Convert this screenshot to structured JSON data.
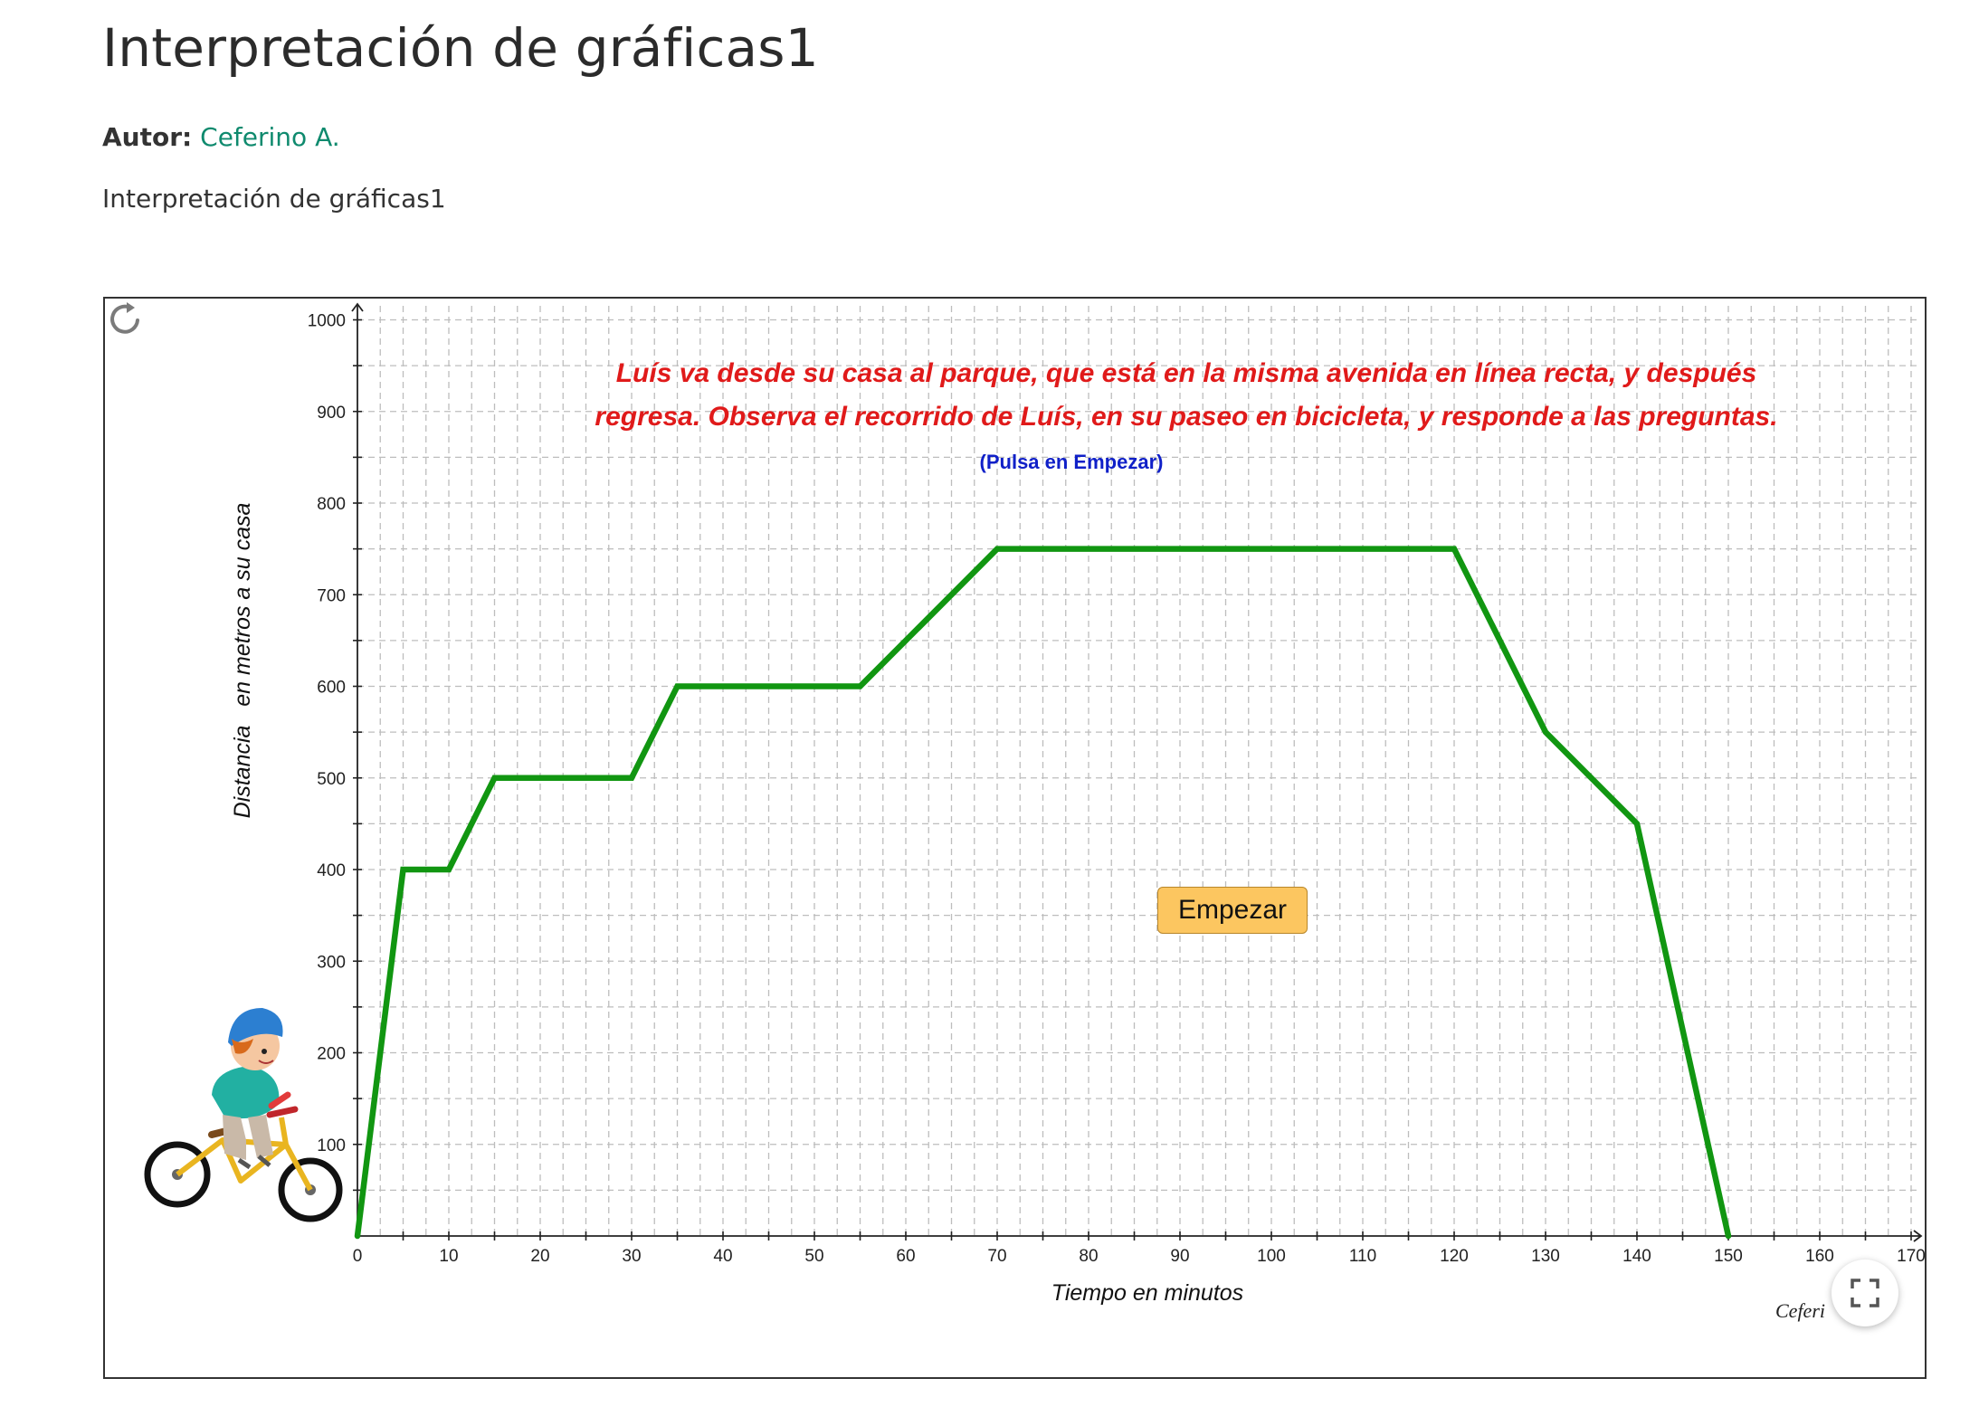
{
  "page": {
    "title": "Interpretación de gráficas1",
    "author_label": "Autor:",
    "author_name": "Ceferino A.",
    "description": "Interpretación de gráficas1"
  },
  "applet": {
    "instruction_line1": "Luís va desde su casa al parque, que está en la misma avenida en línea recta, y después",
    "instruction_line2": "regresa. Observa el recorrido de Luís, en su paseo en bicicleta, y responde a las preguntas.",
    "hint": "(Pulsa en Empezar)",
    "start_button": "Empezar",
    "signature": "Ceferi",
    "icons": [
      "reset-icon",
      "fullscreen-icon",
      "boy-on-bicycle-image"
    ],
    "colors": {
      "graph_line": "#119611",
      "instruction": "#e01a1a",
      "hint": "#1020c8",
      "button": "#fcc660"
    }
  },
  "chart_data": {
    "type": "line",
    "xlabel": "Tiempo en minutos",
    "ylabel": "Distancia   en metros a su casa",
    "xlim": [
      0,
      170
    ],
    "ylim": [
      0,
      1000
    ],
    "x_ticks": [
      0,
      10,
      20,
      30,
      40,
      50,
      60,
      70,
      80,
      90,
      100,
      110,
      120,
      130,
      140,
      150,
      160,
      170
    ],
    "y_ticks": [
      100,
      200,
      300,
      400,
      500,
      600,
      700,
      800,
      900,
      1000
    ],
    "grid": true,
    "series": [
      {
        "x": [
          0,
          5,
          10,
          15,
          30,
          35,
          55,
          70,
          120,
          130,
          140,
          150
        ],
        "y": [
          0,
          400,
          400,
          500,
          500,
          600,
          600,
          750,
          750,
          550,
          450,
          0
        ]
      }
    ]
  }
}
